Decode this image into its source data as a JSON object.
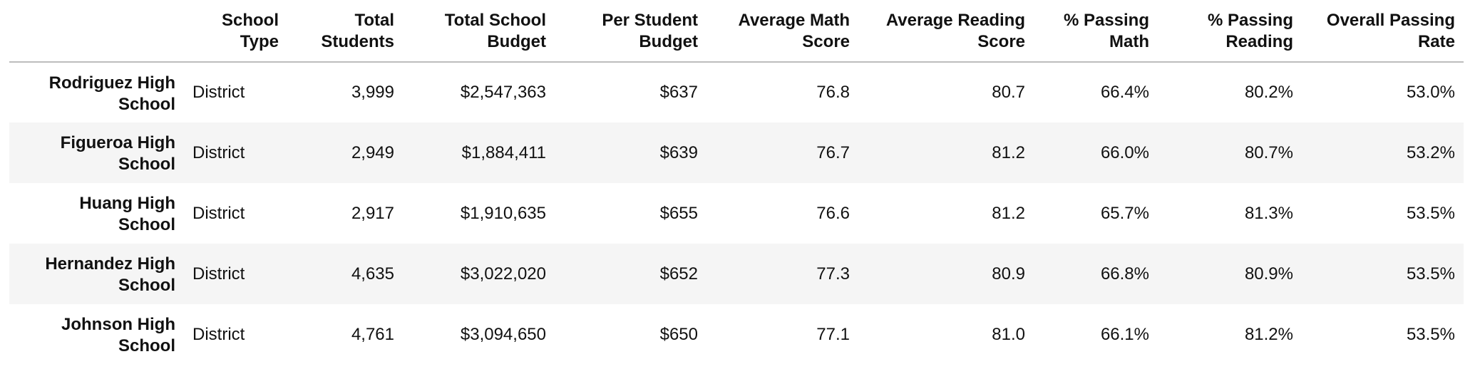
{
  "table": {
    "index_header": "",
    "columns": [
      "School Type",
      "Total Students",
      "Total School Budget",
      "Per Student Budget",
      "Average Math Score",
      "Average Reading Score",
      "% Passing Math",
      "% Passing Reading",
      "Overall Passing Rate"
    ],
    "rows": [
      {
        "school": "Rodriguez High School",
        "values": [
          "District",
          "3,999",
          "$2,547,363",
          "$637",
          "76.8",
          "80.7",
          "66.4%",
          "80.2%",
          "53.0%"
        ]
      },
      {
        "school": "Figueroa High School",
        "values": [
          "District",
          "2,949",
          "$1,884,411",
          "$639",
          "76.7",
          "81.2",
          "66.0%",
          "80.7%",
          "53.2%"
        ]
      },
      {
        "school": "Huang High School",
        "values": [
          "District",
          "2,917",
          "$1,910,635",
          "$655",
          "76.6",
          "81.2",
          "65.7%",
          "81.3%",
          "53.5%"
        ]
      },
      {
        "school": "Hernandez High School",
        "values": [
          "District",
          "4,635",
          "$3,022,020",
          "$652",
          "77.3",
          "80.9",
          "66.8%",
          "80.9%",
          "53.5%"
        ]
      },
      {
        "school": "Johnson High School",
        "values": [
          "District",
          "4,761",
          "$3,094,650",
          "$650",
          "77.1",
          "81.0",
          "66.1%",
          "81.2%",
          "53.5%"
        ]
      }
    ]
  },
  "colors": {
    "header_rule": "#bdbdbd",
    "stripe": "#f5f5f5",
    "text": "#111111"
  }
}
